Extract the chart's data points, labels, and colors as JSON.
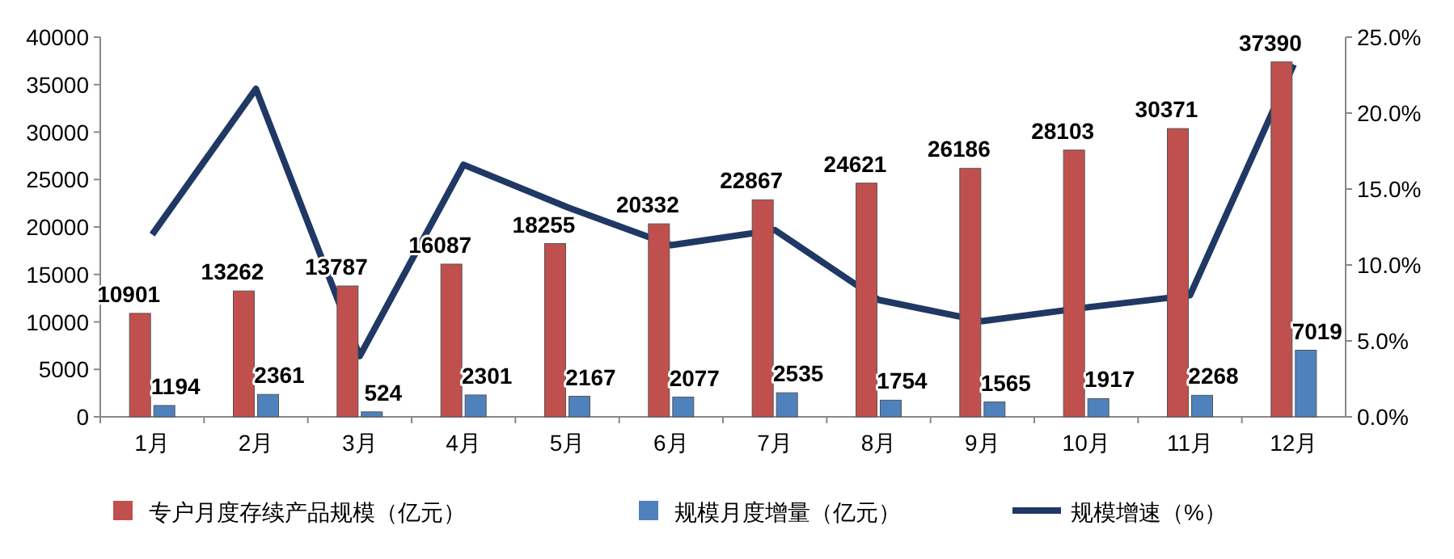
{
  "chart_data": {
    "type": "bar",
    "categories": [
      "1月",
      "2月",
      "3月",
      "4月",
      "5月",
      "6月",
      "7月",
      "8月",
      "9月",
      "10月",
      "11月",
      "12月"
    ],
    "series": [
      {
        "name": "专户月度存续产品规模（亿元）",
        "color": "#c0504d",
        "values": [
          10901,
          13262,
          13787,
          16087,
          18255,
          20332,
          22867,
          24621,
          26186,
          28103,
          30371,
          37390
        ],
        "value_labels": [
          "10901",
          "13262",
          "13787",
          "16087",
          "18255",
          "20332",
          "22867",
          "24621",
          "26186",
          "28103",
          "30371",
          "37390"
        ]
      },
      {
        "name": "规模月度增量（亿元）",
        "color": "#4f81bd",
        "values": [
          1194,
          2361,
          524,
          2301,
          2167,
          2077,
          2535,
          1754,
          1565,
          1917,
          2268,
          7019
        ],
        "value_labels": [
          "1194",
          "2361",
          "524",
          "2301",
          "2167",
          "2077",
          "2535",
          "1754",
          "1565",
          "1917",
          "2268",
          "7019"
        ]
      },
      {
        "name": "规模增速（%）",
        "type": "line",
        "axis": "y2",
        "color": "#1f3864",
        "values": [
          12.0,
          21.6,
          4.0,
          16.6,
          13.8,
          11.3,
          12.3,
          7.7,
          6.3,
          7.2,
          8.0,
          23.2
        ]
      }
    ],
    "ylim": [
      0,
      40000
    ],
    "yticks": [
      0,
      5000,
      10000,
      15000,
      20000,
      25000,
      30000,
      35000,
      40000
    ],
    "y2lim": [
      0,
      25
    ],
    "y2ticks": [
      {
        "value": 0,
        "label": "0.0%"
      },
      {
        "value": 5,
        "label": "5.0%"
      },
      {
        "value": 10,
        "label": "10.0%"
      },
      {
        "value": 15,
        "label": "15.0%"
      },
      {
        "value": 20,
        "label": "20.0%"
      },
      {
        "value": 25,
        "label": "25.0%"
      }
    ],
    "legend": "bottom",
    "grid": false,
    "marker": "none"
  }
}
